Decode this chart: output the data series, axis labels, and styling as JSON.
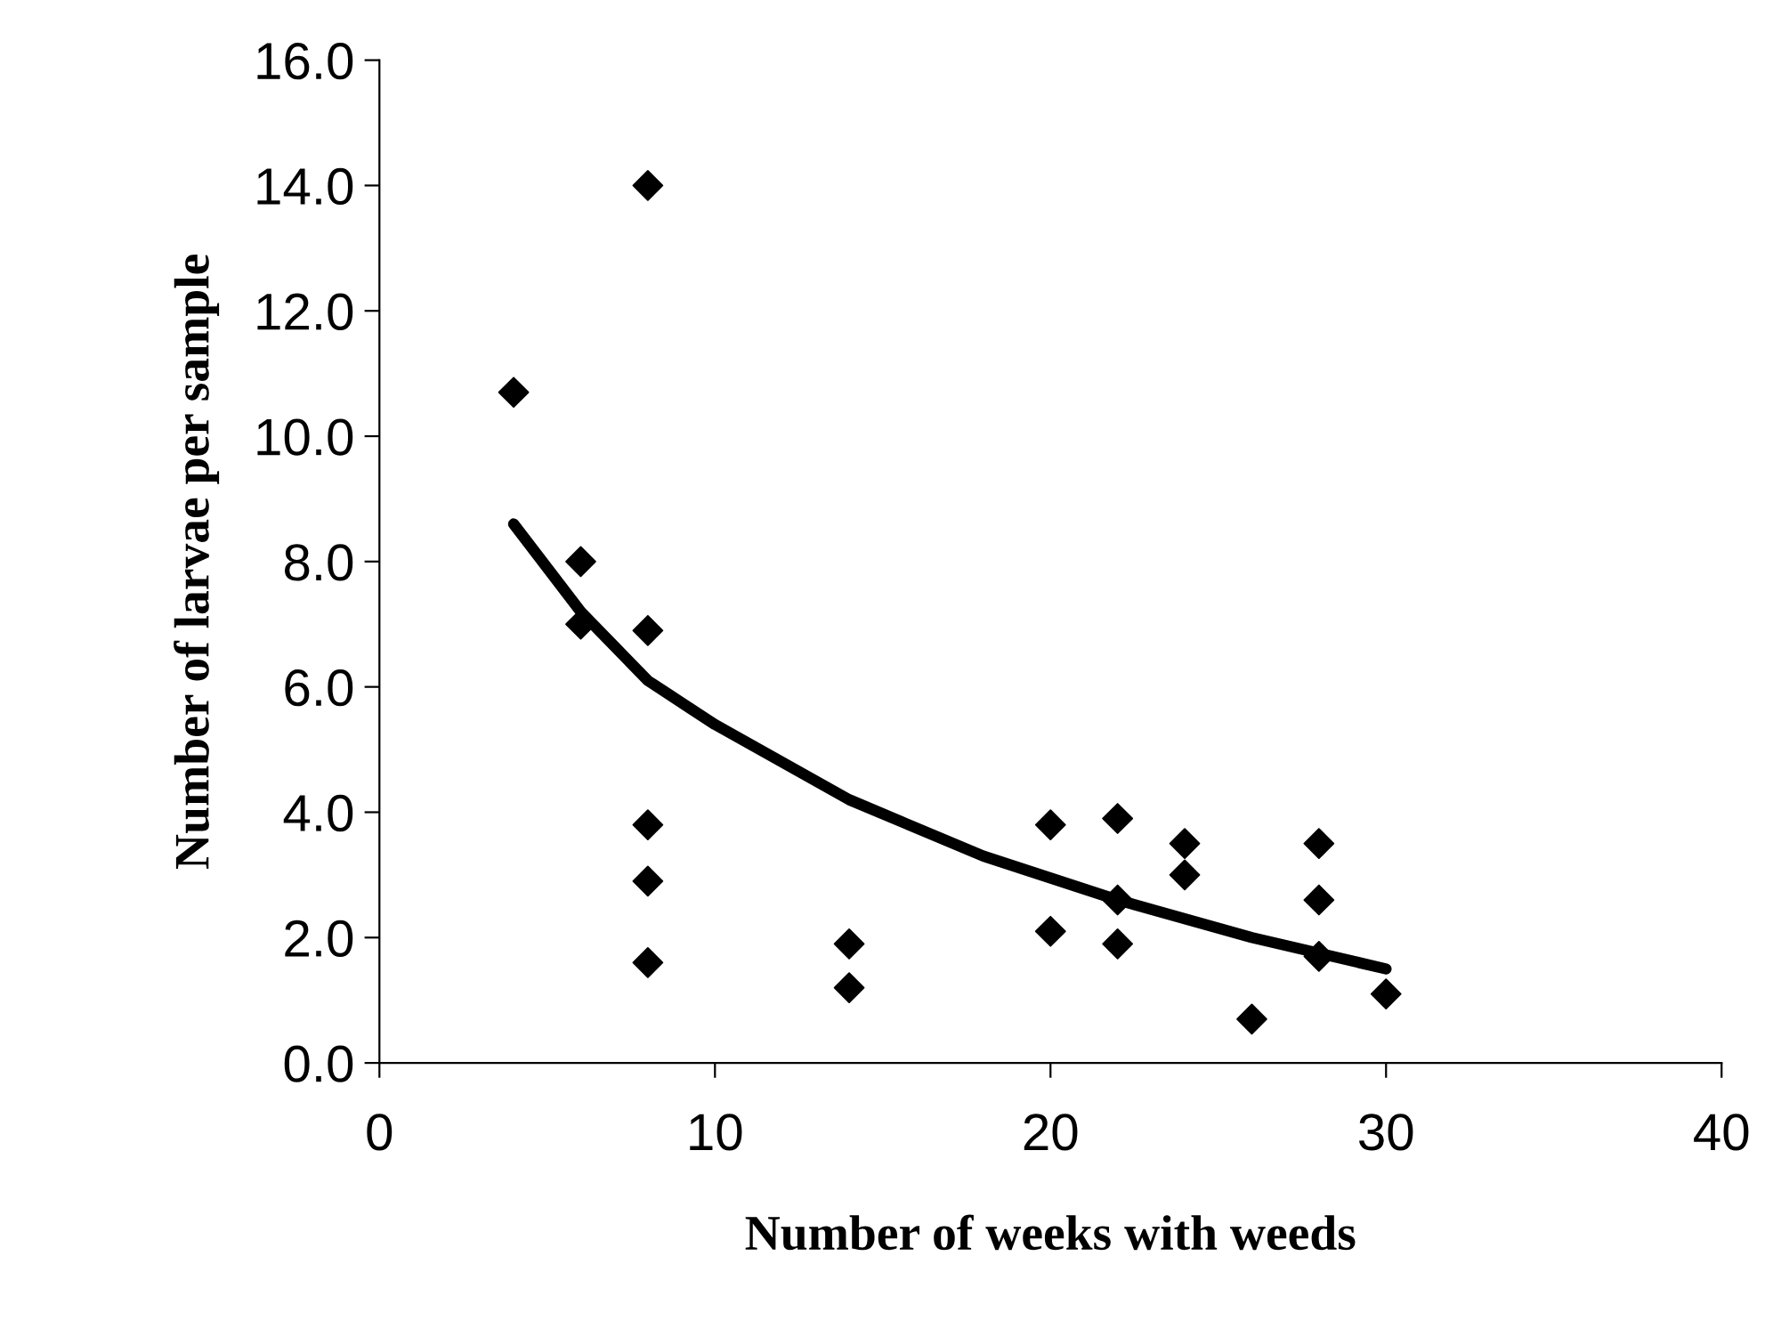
{
  "chart_data": {
    "type": "scatter",
    "xlabel": "Number of weeks with weeds",
    "ylabel": "Number of larvae per sample",
    "xlim": [
      0,
      40
    ],
    "xticks": [
      0,
      10,
      20,
      30,
      40
    ],
    "ylim": [
      0,
      16
    ],
    "yticks": [
      {
        "value": 0,
        "label": "0.0"
      },
      {
        "value": 2,
        "label": "2.0"
      },
      {
        "value": 4,
        "label": "4.0"
      },
      {
        "value": 6,
        "label": "6.0"
      },
      {
        "value": 8,
        "label": "8.0"
      },
      {
        "value": 10,
        "label": "10.0"
      },
      {
        "value": 12,
        "label": "12.0"
      },
      {
        "value": 14,
        "label": "14.0"
      },
      {
        "value": 16,
        "label": "16.0"
      }
    ],
    "grid": false,
    "legend": false,
    "series": [
      {
        "marker": "diamond",
        "color": "#000000",
        "x": [
          4,
          6,
          6,
          8,
          8,
          8,
          8,
          8,
          14,
          14,
          20,
          20,
          22,
          22,
          22,
          24,
          24,
          26,
          28,
          28,
          28,
          30
        ],
        "values": [
          10.7,
          8.0,
          7.0,
          14.0,
          6.9,
          3.8,
          2.9,
          1.6,
          1.9,
          1.2,
          3.8,
          2.1,
          3.9,
          2.6,
          1.9,
          3.5,
          3.0,
          0.7,
          3.5,
          2.6,
          1.7,
          1.1
        ]
      },
      {
        "type": "line",
        "marker": "none",
        "line_style": "solid",
        "color": "#000000",
        "x": [
          4,
          6,
          8,
          10,
          14,
          18,
          22,
          26,
          30
        ],
        "values": [
          8.6,
          7.2,
          6.1,
          5.4,
          4.2,
          3.3,
          2.6,
          2.0,
          1.5
        ]
      }
    ]
  }
}
